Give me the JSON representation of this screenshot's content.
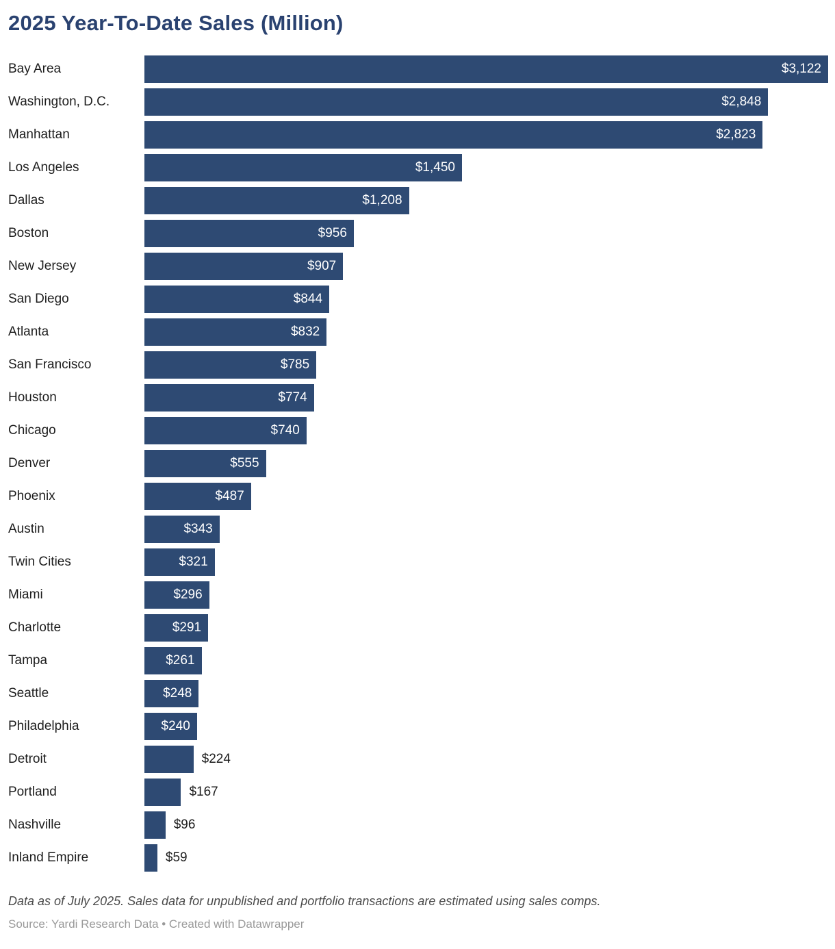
{
  "title": "2025 Year-To-Date Sales (Million)",
  "footer": {
    "notes": "Data as of July 2025. Sales data for unpublished and portfolio transactions are estimated using sales comps.",
    "source": "Source: Yardi Research Data • Created with Datawrapper"
  },
  "colors": {
    "bar": "#2e4a73",
    "title": "#2a4270",
    "label": "#1d1d1d",
    "value_inside": "#ffffff",
    "notes": "#4a4a4a",
    "source": "#999999"
  },
  "chart_data": {
    "type": "bar",
    "orientation": "horizontal",
    "title": "2025 Year-To-Date Sales (Million)",
    "xlabel": "",
    "ylabel": "",
    "xlim": [
      0,
      3122
    ],
    "grid": false,
    "legend": false,
    "value_prefix": "$",
    "categories": [
      "Bay Area",
      "Washington, D.C.",
      "Manhattan",
      "Los Angeles",
      "Dallas",
      "Boston",
      "New Jersey",
      "San Diego",
      "Atlanta",
      "San Francisco",
      "Houston",
      "Chicago",
      "Denver",
      "Phoenix",
      "Austin",
      "Twin Cities",
      "Miami",
      "Charlotte",
      "Tampa",
      "Seattle",
      "Philadelphia",
      "Detroit",
      "Portland",
      "Nashville",
      "Inland Empire"
    ],
    "values": [
      3122,
      2848,
      2823,
      1450,
      1208,
      956,
      907,
      844,
      832,
      785,
      774,
      740,
      555,
      487,
      343,
      321,
      296,
      291,
      261,
      248,
      240,
      224,
      167,
      96,
      59
    ],
    "display_values": [
      "$3,122",
      "$2,848",
      "$2,823",
      "$1,450",
      "$1,208",
      "$956",
      "$907",
      "$844",
      "$832",
      "$785",
      "$774",
      "$740",
      "$555",
      "$487",
      "$343",
      "$321",
      "$296",
      "$291",
      "$261",
      "$248",
      "$240",
      "$224",
      "$167",
      "$96",
      "$59"
    ]
  }
}
